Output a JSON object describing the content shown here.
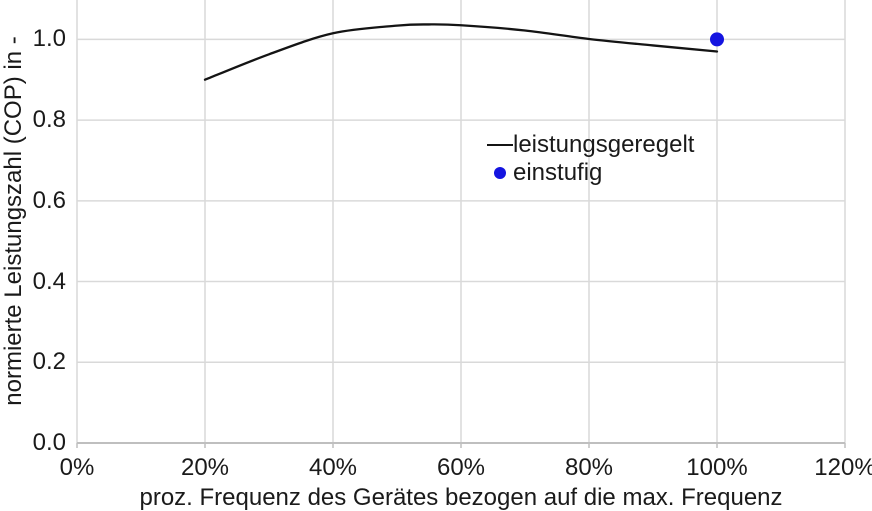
{
  "chart_data": {
    "type": "line",
    "title": "",
    "xlabel": "proz. Frequenz des Gerätes bezogen auf die max. Frequenz",
    "ylabel": "normierte Leistungszahl (COP) in -",
    "xlim": [
      0,
      120
    ],
    "ylim": [
      0,
      1.1
    ],
    "grid": true,
    "legend_position": "inside-center",
    "xticks": [
      {
        "v": 0,
        "label": "0%"
      },
      {
        "v": 20,
        "label": "20%"
      },
      {
        "v": 40,
        "label": "40%"
      },
      {
        "v": 60,
        "label": "60%"
      },
      {
        "v": 80,
        "label": "80%"
      },
      {
        "v": 100,
        "label": "100%"
      },
      {
        "v": 120,
        "label": "120%"
      }
    ],
    "yticks": [
      {
        "v": 0.0,
        "label": "0.0"
      },
      {
        "v": 0.2,
        "label": "0.2"
      },
      {
        "v": 0.4,
        "label": "0.4"
      },
      {
        "v": 0.6,
        "label": "0.6"
      },
      {
        "v": 0.8,
        "label": "0.8"
      },
      {
        "v": 1.0,
        "label": "1.0"
      }
    ],
    "series": [
      {
        "name": "leistungsgeregelt",
        "kind": "line",
        "color": "#141414",
        "stroke_width": 2.3,
        "points": [
          [
            20,
            0.9
          ],
          [
            30,
            0.963
          ],
          [
            40,
            1.015
          ],
          [
            50,
            1.034
          ],
          [
            55,
            1.037
          ],
          [
            60,
            1.035
          ],
          [
            70,
            1.022
          ],
          [
            80,
            1.001
          ],
          [
            90,
            0.985
          ],
          [
            100,
            0.97
          ]
        ]
      },
      {
        "name": "einstufig",
        "kind": "scatter",
        "color": "#1414e0",
        "marker_radius": 7,
        "points": [
          [
            100,
            1.0
          ]
        ]
      }
    ]
  },
  "colors": {
    "background": "#ffffff",
    "gridline": "#d9d9d9",
    "axis_line": "#bfbfbf",
    "text": "#1a1a1a",
    "line_series": "#141414",
    "scatter_series": "#1414e0"
  }
}
